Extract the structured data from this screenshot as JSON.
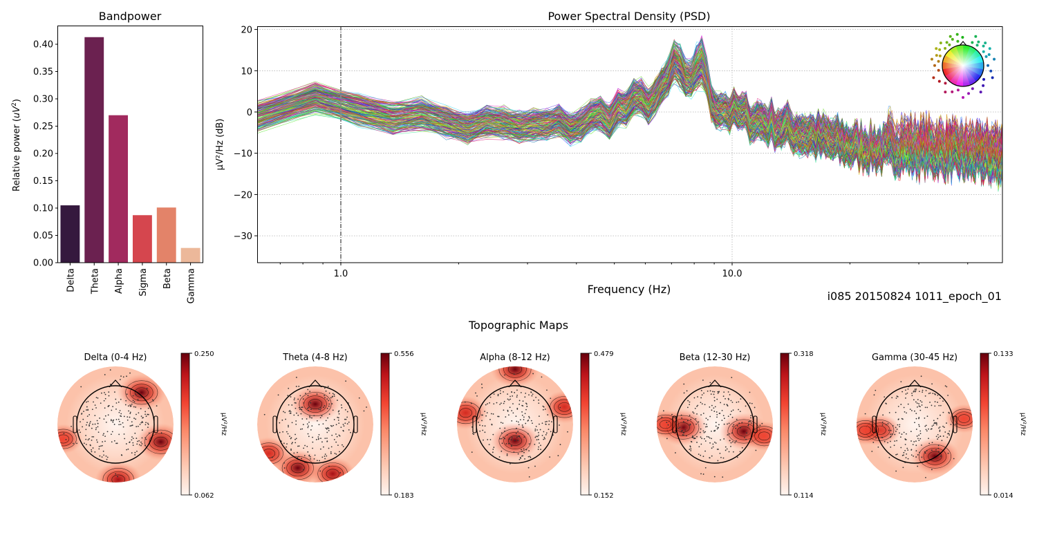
{
  "chart_data": [
    {
      "type": "bar",
      "title": "Bandpower",
      "xlabel": "",
      "ylabel": "Relative power (uV²)",
      "categories": [
        "Delta",
        "Theta",
        "Alpha",
        "Sigma",
        "Beta",
        "Gamma"
      ],
      "values": [
        0.105,
        0.413,
        0.27,
        0.087,
        0.101,
        0.027
      ],
      "colors": [
        "#35193e",
        "#6b2150",
        "#a12a5e",
        "#d5464e",
        "#e38369",
        "#ecb89a"
      ],
      "ylim": [
        0,
        0.43
      ],
      "yticks": [
        0.0,
        0.05,
        0.1,
        0.15,
        0.2,
        0.25,
        0.3,
        0.35,
        0.4
      ],
      "ytick_labels": [
        "0.00",
        "0.05",
        "0.10",
        "0.15",
        "0.20",
        "0.25",
        "0.30",
        "0.35",
        "0.40"
      ],
      "grid": false
    },
    {
      "type": "line",
      "title": "Power Spectral Density (PSD)",
      "xlabel": "Frequency (Hz)",
      "ylabel": "µV²/Hz (dB)",
      "xscale": "log",
      "xlim": [
        0.61,
        49
      ],
      "ylim": [
        -36.5,
        20.8
      ],
      "xticks": [
        1.0,
        10.0
      ],
      "xtick_labels": [
        "1.0",
        "10.0"
      ],
      "yticks": [
        20,
        10,
        0,
        -10,
        -20,
        -30
      ],
      "ytick_labels": [
        "20",
        "10",
        "0",
        "−10",
        "−20",
        "−30"
      ],
      "grid": true,
      "vline_x": 1.0,
      "n_channels_approx": 200,
      "annotation": "i085 20150824 1011_epoch_01",
      "legend": "sensor-location inset (spatial colors), top-right",
      "envelope": {
        "freq_hz": [
          0.61,
          1.0,
          2.0,
          3.0,
          4.0,
          5.0,
          7.0,
          8.0,
          10.0,
          15.0,
          20.0,
          30.0,
          49.0
        ],
        "mean_db": [
          1,
          2,
          -3,
          -4,
          -3,
          0,
          5,
          4,
          0,
          -5,
          -8,
          -10,
          -12
        ],
        "spread_db": [
          5,
          5,
          5,
          5,
          5,
          6,
          6,
          6,
          6,
          7,
          7,
          7,
          7
        ],
        "peaks_db": [
          {
            "freq": 7.2,
            "value": 14
          },
          {
            "freq": 8.3,
            "value": 17
          }
        ]
      }
    },
    {
      "type": "heatmap",
      "title": "Topographic Maps",
      "unit_label": "µV²/Hz",
      "maps": [
        {
          "title": "Delta (0-4 Hz)",
          "vmin": "0.062",
          "vmax": "0.250",
          "hotspots": [
            {
              "x": 0.45,
              "y": -0.55,
              "v": 1.0
            },
            {
              "x": 0.78,
              "y": 0.3,
              "v": 1.0
            },
            {
              "x": 0.05,
              "y": 0.95,
              "v": 0.9
            },
            {
              "x": -0.9,
              "y": 0.25,
              "v": 0.5
            }
          ]
        },
        {
          "title": "Theta (4-8 Hz)",
          "vmin": "0.183",
          "vmax": "0.556",
          "hotspots": [
            {
              "x": 0.0,
              "y": -0.35,
              "v": 1.0
            },
            {
              "x": -0.3,
              "y": 0.75,
              "v": 0.95
            },
            {
              "x": 0.3,
              "y": 0.85,
              "v": 0.8
            },
            {
              "x": -0.8,
              "y": 0.5,
              "v": 0.7
            }
          ]
        },
        {
          "title": "Alpha (8-12 Hz)",
          "vmin": "0.152",
          "vmax": "0.479",
          "hotspots": [
            {
              "x": 0.0,
              "y": 0.28,
              "v": 1.0
            },
            {
              "x": 0.0,
              "y": -0.95,
              "v": 1.0
            },
            {
              "x": -0.85,
              "y": -0.2,
              "v": 0.75
            },
            {
              "x": 0.85,
              "y": -0.3,
              "v": 0.7
            }
          ]
        },
        {
          "title": "Beta (12-30 Hz)",
          "vmin": "0.114",
          "vmax": "0.318",
          "hotspots": [
            {
              "x": -0.55,
              "y": 0.05,
              "v": 1.0
            },
            {
              "x": 0.5,
              "y": 0.12,
              "v": 1.0
            },
            {
              "x": 0.85,
              "y": 0.2,
              "v": 0.5
            },
            {
              "x": -0.85,
              "y": 0.0,
              "v": 0.45
            }
          ]
        },
        {
          "title": "Gamma (30-45 Hz)",
          "vmin": "0.014",
          "vmax": "0.133",
          "hotspots": [
            {
              "x": 0.35,
              "y": 0.55,
              "v": 1.0
            },
            {
              "x": -0.6,
              "y": 0.1,
              "v": 0.65
            },
            {
              "x": -0.85,
              "y": 0.1,
              "v": 0.5
            },
            {
              "x": 0.85,
              "y": -0.1,
              "v": 0.45
            }
          ]
        }
      ]
    }
  ]
}
